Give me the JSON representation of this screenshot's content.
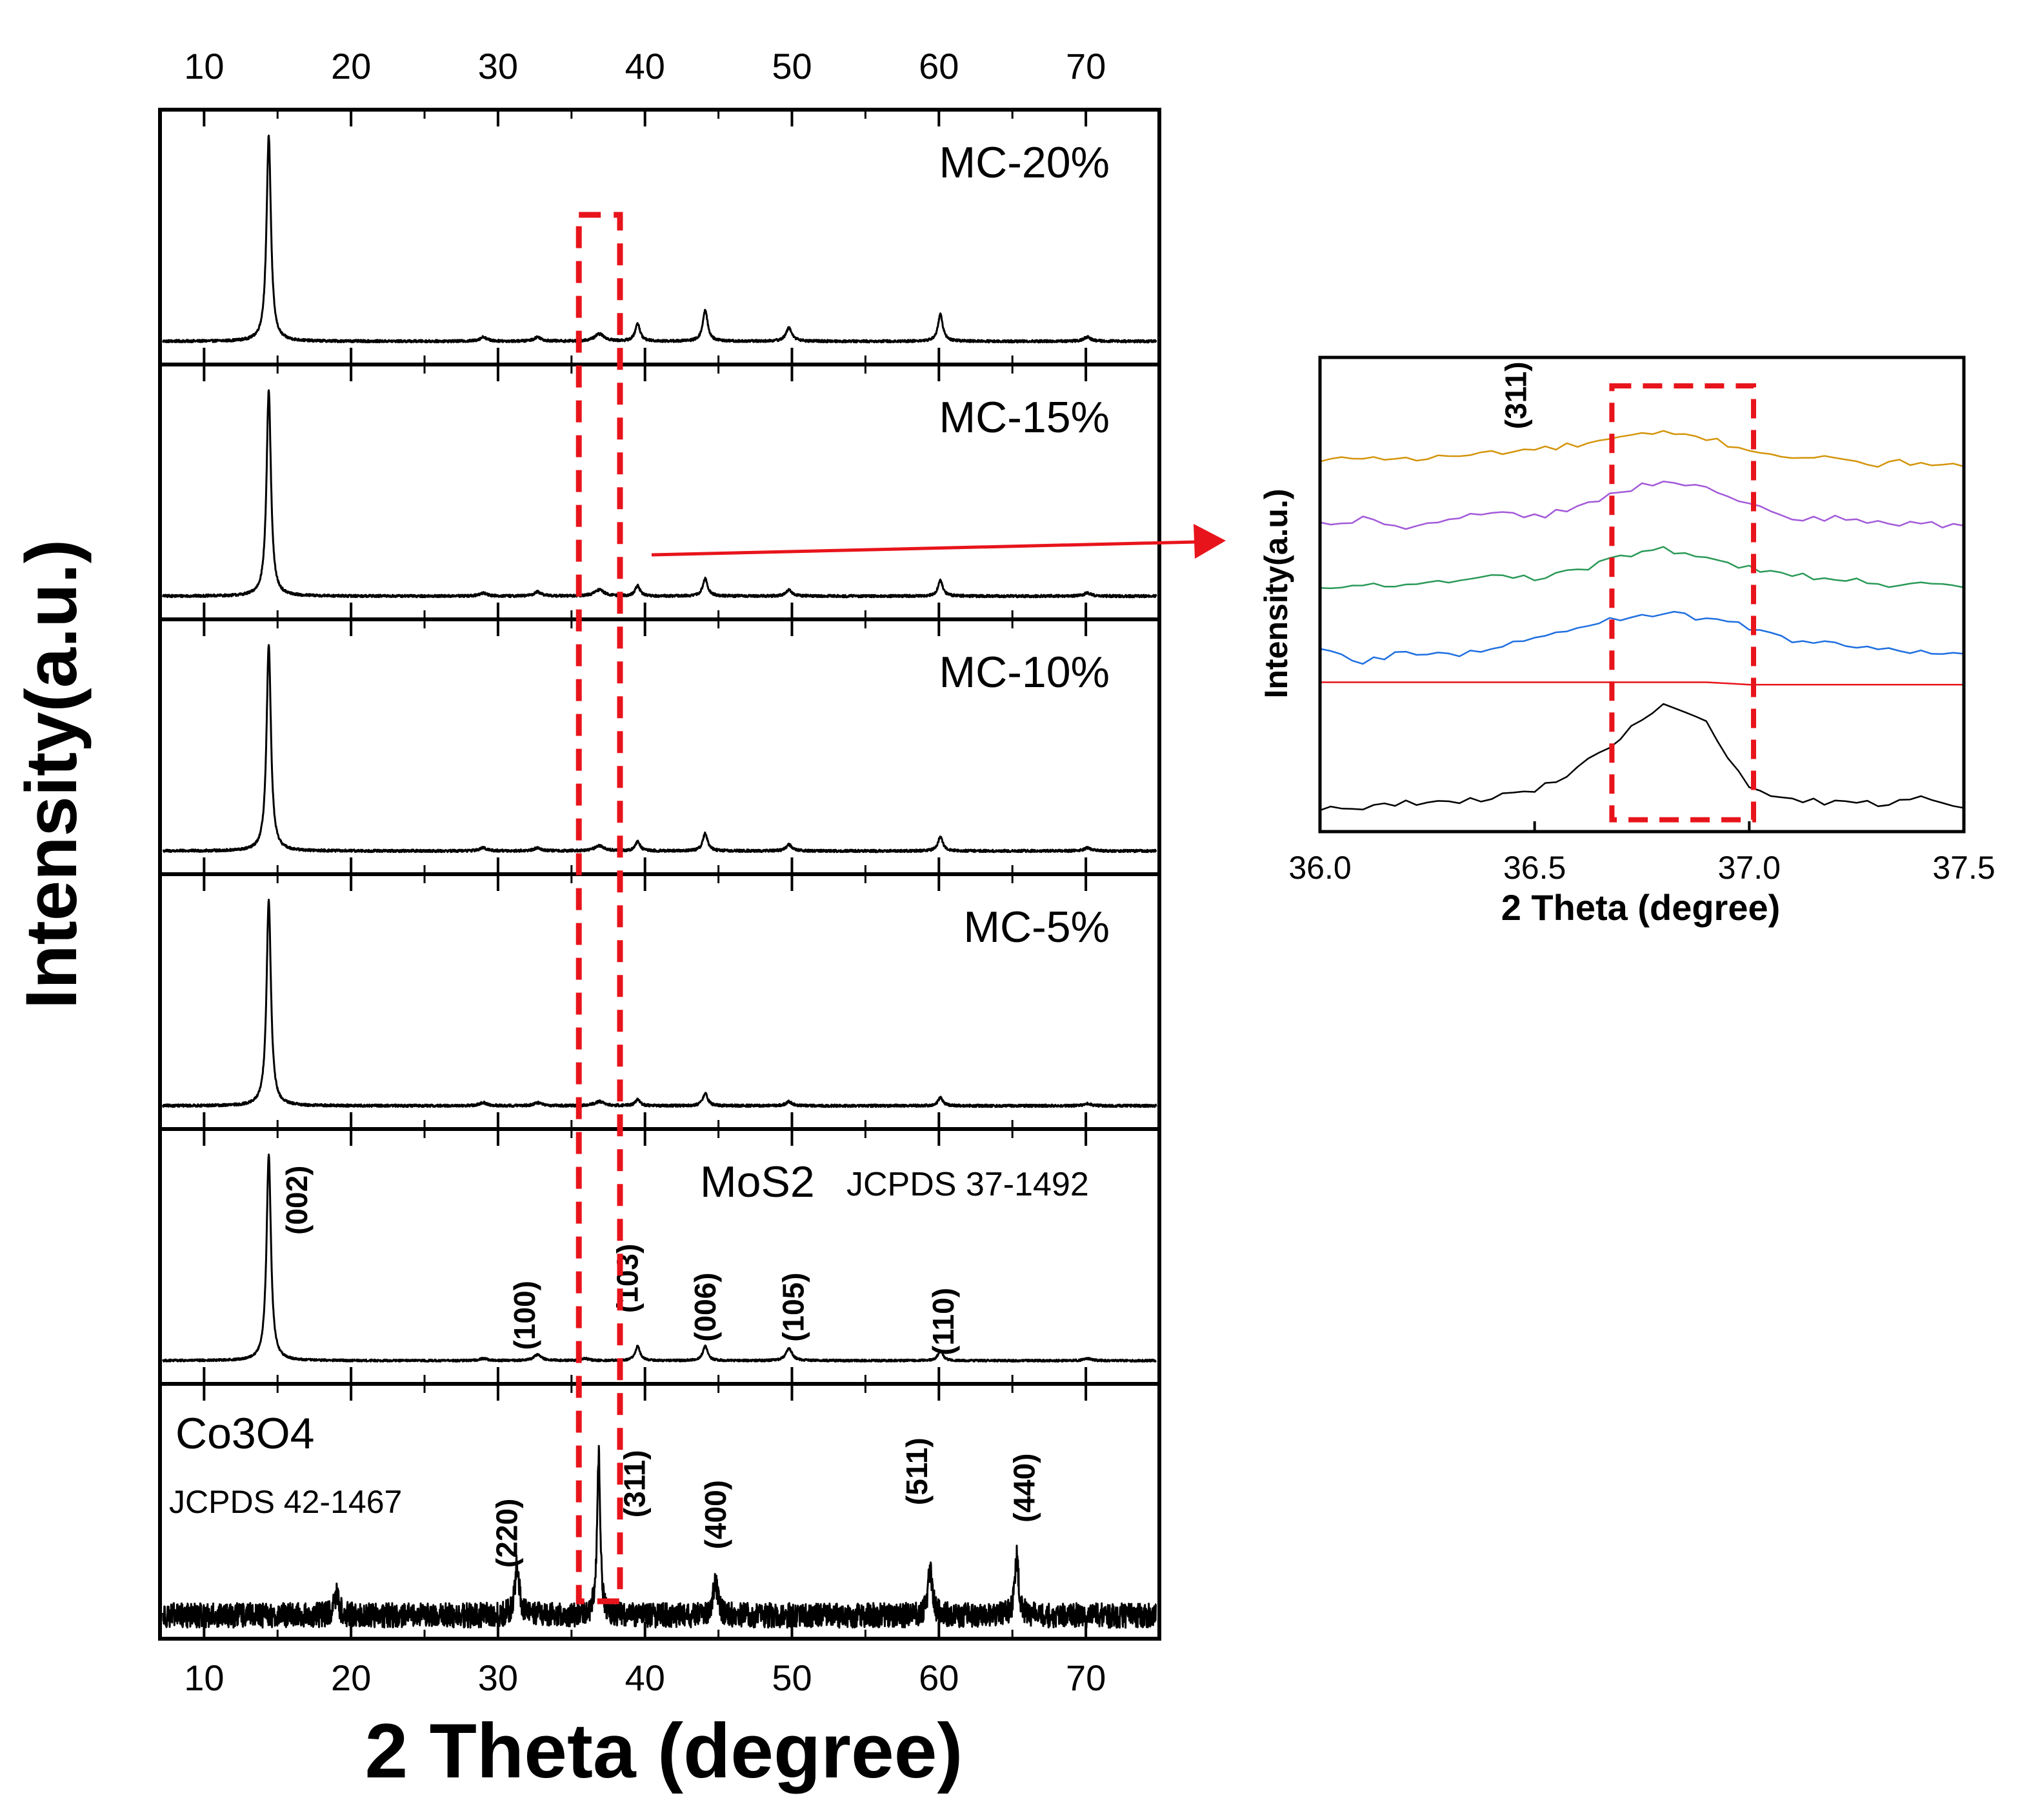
{
  "colors": {
    "trace": "#000000",
    "highlight": "#e8141b",
    "inset_orange": "#d4950c",
    "inset_purple": "#a35ad8",
    "inset_green": "#2b9a58",
    "inset_blue": "#1f6fe0",
    "inset_red": "#e8141b",
    "inset_black": "#000000"
  },
  "chart_data": [
    {
      "type": "line",
      "chart": "main-xrd-stack",
      "xlabel": "2 Theta (degree)",
      "ylabel": "Intensity(a.u.)",
      "xlim": [
        7,
        75
      ],
      "xticks": [
        10,
        20,
        30,
        40,
        50,
        60,
        70
      ],
      "xticks_top": [
        10,
        20,
        30,
        40,
        50,
        60,
        70
      ],
      "highlight_box_x": [
        35.5,
        38.3
      ],
      "panels": [
        {
          "label": "MC-20%",
          "noise": 0.006,
          "peaks": [
            [
              14.4,
              1.0,
              0.18
            ],
            [
              29.0,
              0.02,
              0.3
            ],
            [
              32.7,
              0.02,
              0.3
            ],
            [
              36.9,
              0.035,
              0.4
            ],
            [
              39.5,
              0.085,
              0.2
            ],
            [
              44.1,
              0.15,
              0.2
            ],
            [
              49.8,
              0.065,
              0.25
            ],
            [
              60.1,
              0.13,
              0.2
            ],
            [
              70.1,
              0.02,
              0.3
            ]
          ]
        },
        {
          "label": "MC-15%",
          "noise": 0.006,
          "peaks": [
            [
              14.4,
              1.0,
              0.18
            ],
            [
              29.0,
              0.015,
              0.3
            ],
            [
              32.7,
              0.02,
              0.3
            ],
            [
              36.9,
              0.03,
              0.4
            ],
            [
              39.5,
              0.05,
              0.2
            ],
            [
              44.1,
              0.085,
              0.2
            ],
            [
              49.8,
              0.03,
              0.25
            ],
            [
              60.1,
              0.075,
              0.2
            ],
            [
              70.1,
              0.015,
              0.3
            ]
          ]
        },
        {
          "label": "MC-10%",
          "noise": 0.006,
          "peaks": [
            [
              14.4,
              1.0,
              0.18
            ],
            [
              29.0,
              0.015,
              0.3
            ],
            [
              32.7,
              0.015,
              0.3
            ],
            [
              36.9,
              0.025,
              0.4
            ],
            [
              39.5,
              0.045,
              0.2
            ],
            [
              44.1,
              0.085,
              0.2
            ],
            [
              49.8,
              0.03,
              0.25
            ],
            [
              60.1,
              0.07,
              0.2
            ],
            [
              70.1,
              0.015,
              0.3
            ]
          ]
        },
        {
          "label": "MC-5%",
          "noise": 0.006,
          "peaks": [
            [
              14.4,
              1.0,
              0.18
            ],
            [
              29.0,
              0.015,
              0.3
            ],
            [
              32.7,
              0.015,
              0.3
            ],
            [
              36.9,
              0.02,
              0.4
            ],
            [
              39.5,
              0.03,
              0.2
            ],
            [
              44.1,
              0.06,
              0.2
            ],
            [
              49.8,
              0.02,
              0.25
            ],
            [
              60.1,
              0.04,
              0.2
            ],
            [
              70.1,
              0.01,
              0.3
            ]
          ]
        },
        {
          "label": "MoS2",
          "sublabel": "JCPDS 37-1492",
          "noise": 0.005,
          "peaks": [
            [
              14.4,
              1.0,
              0.18
            ],
            [
              29.0,
              0.01,
              0.3
            ],
            [
              32.7,
              0.03,
              0.3
            ],
            [
              35.9,
              0.01,
              0.3
            ],
            [
              39.5,
              0.07,
              0.2
            ],
            [
              44.1,
              0.07,
              0.2
            ],
            [
              49.8,
              0.06,
              0.25
            ],
            [
              60.1,
              0.05,
              0.2
            ],
            [
              70.1,
              0.01,
              0.3
            ]
          ],
          "hkl": [
            {
              "x": 17.0,
              "y": 0.78,
              "text": "(002)"
            },
            {
              "x": 32.5,
              "y": 0.22,
              "text": "(100)"
            },
            {
              "x": 39.5,
              "y": 0.4,
              "text": "(103)"
            },
            {
              "x": 44.8,
              "y": 0.26,
              "text": "(006)"
            },
            {
              "x": 50.8,
              "y": 0.26,
              "text": "(105)"
            },
            {
              "x": 61.0,
              "y": 0.19,
              "text": "(110)"
            }
          ]
        },
        {
          "label": "Co3O4",
          "sublabel": "JCPDS 42-1467",
          "noise": 0.06,
          "peaks": [
            [
              19.0,
              0.1,
              0.2
            ],
            [
              31.3,
              0.25,
              0.18
            ],
            [
              36.85,
              0.78,
              0.13
            ],
            [
              44.8,
              0.16,
              0.2
            ],
            [
              59.4,
              0.22,
              0.18
            ],
            [
              65.3,
              0.28,
              0.15
            ]
          ],
          "hkl": [
            {
              "x": 31.3,
              "y": 0.4,
              "text": "(220)"
            },
            {
              "x": 40.0,
              "y": 0.64,
              "text": "(311)"
            },
            {
              "x": 45.5,
              "y": 0.49,
              "text": "(400)"
            },
            {
              "x": 59.2,
              "y": 0.7,
              "text": "(511)"
            },
            {
              "x": 66.5,
              "y": 0.62,
              "text": "(440)"
            }
          ]
        }
      ]
    },
    {
      "type": "line",
      "chart": "inset-311",
      "xlabel": "2 Theta (degree)",
      "ylabel": "Intensity(a.u.)",
      "xlim": [
        36.0,
        37.5
      ],
      "xticks": [
        "36.0",
        "36.5",
        "37.0",
        "37.5"
      ],
      "ylim": [
        0,
        1
      ],
      "highlight_box_x": [
        36.68,
        37.01
      ],
      "highlight_box_y": [
        0.025,
        0.94
      ],
      "annotation": {
        "x": 36.48,
        "y": 0.92,
        "text": "(311)"
      },
      "x": [
        36.0,
        36.1,
        36.2,
        36.3,
        36.4,
        36.5,
        36.6,
        36.7,
        36.8,
        36.9,
        37.0,
        37.1,
        37.2,
        37.3,
        37.4,
        37.5
      ],
      "series": [
        {
          "color": "inset_orange",
          "y": [
            0.78,
            0.79,
            0.785,
            0.79,
            0.8,
            0.805,
            0.815,
            0.83,
            0.84,
            0.83,
            0.805,
            0.79,
            0.785,
            0.775,
            0.78,
            0.77
          ]
        },
        {
          "color": "inset_purple",
          "y": [
            0.65,
            0.66,
            0.645,
            0.66,
            0.67,
            0.665,
            0.68,
            0.72,
            0.74,
            0.73,
            0.69,
            0.66,
            0.66,
            0.65,
            0.65,
            0.645
          ]
        },
        {
          "color": "inset_green",
          "y": [
            0.51,
            0.52,
            0.525,
            0.53,
            0.54,
            0.535,
            0.55,
            0.58,
            0.595,
            0.58,
            0.555,
            0.54,
            0.535,
            0.52,
            0.525,
            0.515
          ]
        },
        {
          "color": "inset_blue",
          "y": [
            0.38,
            0.36,
            0.38,
            0.37,
            0.385,
            0.41,
            0.43,
            0.45,
            0.46,
            0.45,
            0.43,
            0.4,
            0.4,
            0.385,
            0.38,
            0.375
          ]
        },
        {
          "color": "inset_red",
          "y": [
            0.315,
            0.315,
            0.315,
            0.315,
            0.315,
            0.315,
            0.315,
            0.315,
            0.315,
            0.315,
            0.31,
            0.31,
            0.31,
            0.31,
            0.31,
            0.31
          ]
        },
        {
          "color": "inset_black",
          "y": [
            0.05,
            0.05,
            0.06,
            0.065,
            0.07,
            0.09,
            0.13,
            0.2,
            0.27,
            0.23,
            0.09,
            0.07,
            0.06,
            0.06,
            0.07,
            0.05
          ]
        }
      ]
    }
  ]
}
